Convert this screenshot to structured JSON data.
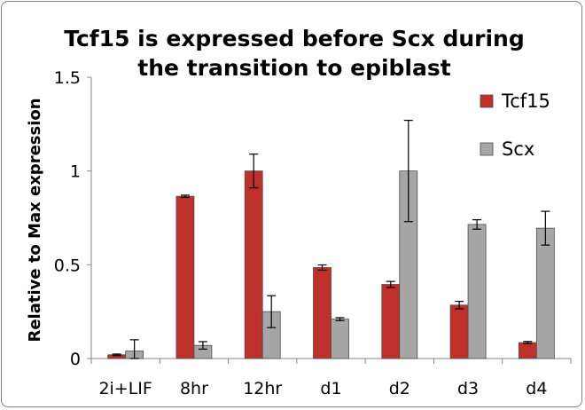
{
  "chart_data": {
    "type": "bar",
    "title_lines": [
      "Tcf15 is expressed before Scx during",
      "the transition to epiblast"
    ],
    "xlabel": "",
    "ylabel": "Relative to Max expression",
    "categories": [
      "2i+LIF",
      "8hr",
      "12hr",
      "d1",
      "d2",
      "d3",
      "d4"
    ],
    "ylim": [
      0,
      1.5
    ],
    "yticks": [
      0,
      0.5,
      1,
      1.5
    ],
    "ytick_labels": [
      "0",
      "0.5",
      "1",
      "1.5"
    ],
    "grid": false,
    "legend_position": "top-right",
    "series": [
      {
        "name": "Tcf15",
        "color": "#c0302b",
        "values": [
          0.02,
          0.865,
          1.0,
          0.485,
          0.395,
          0.285,
          0.085
        ],
        "errors": [
          0.004,
          0.006,
          0.09,
          0.014,
          0.016,
          0.02,
          0.006
        ]
      },
      {
        "name": "Scx",
        "color": "#a6a6a6",
        "values": [
          0.04,
          0.07,
          0.25,
          0.21,
          1.0,
          0.715,
          0.695
        ],
        "errors": [
          0.06,
          0.02,
          0.085,
          0.008,
          0.27,
          0.025,
          0.09
        ]
      }
    ]
  }
}
